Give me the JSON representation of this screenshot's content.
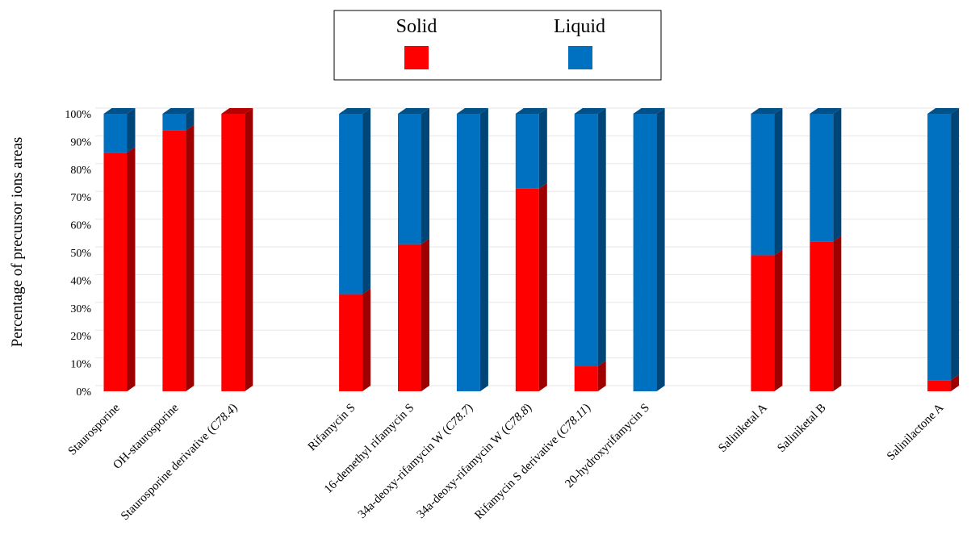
{
  "chart_data": {
    "type": "bar",
    "stacked": true,
    "three_d": true,
    "ylabel": "Percentage of precursor ions areas",
    "xlabel": "",
    "ylim": [
      0,
      100
    ],
    "y_ticks": [
      "0%",
      "10%",
      "20%",
      "30%",
      "40%",
      "50%",
      "60%",
      "70%",
      "80%",
      "90%",
      "100%"
    ],
    "grid": true,
    "legend": {
      "placement": "top-center",
      "entries": [
        {
          "name": "Solid",
          "color": "#ff0000"
        },
        {
          "name": "Liquid",
          "color": "#0070c0"
        }
      ]
    },
    "categories": [
      {
        "label": "Staurosporine",
        "italic": ""
      },
      {
        "label": "OH-staurosporine",
        "italic": ""
      },
      {
        "label": "Staurosporine derivative (",
        "italic": "C78.4",
        "suffix": ")"
      },
      {
        "label": "",
        "italic": ""
      },
      {
        "label": "Rifamycin S",
        "italic": ""
      },
      {
        "label": "16-demethyl rifamycin S",
        "italic": ""
      },
      {
        "label": "34a-deoxy-rifamycin W (",
        "italic": "C78.7",
        "suffix": ")"
      },
      {
        "label": "34a-deoxy-rifamycin W (",
        "italic": "C78.8",
        "suffix": ")"
      },
      {
        "label": "Rifamycin S derivative (",
        "italic": "C78.11",
        "suffix": ")"
      },
      {
        "label": "20-hydroxyrifamycin S",
        "italic": ""
      },
      {
        "label": "",
        "italic": ""
      },
      {
        "label": "Saliniketal A",
        "italic": ""
      },
      {
        "label": "Saliniketal B",
        "italic": ""
      },
      {
        "label": "",
        "italic": ""
      },
      {
        "label": "Salinilactone A",
        "italic": ""
      }
    ],
    "series": [
      {
        "name": "Solid",
        "color": "#ff0000",
        "values": [
          86,
          94,
          100,
          null,
          35,
          53,
          0,
          73,
          9,
          0,
          null,
          49,
          54,
          null,
          4
        ]
      },
      {
        "name": "Liquid",
        "color": "#0070c0",
        "values": [
          14,
          6,
          0,
          null,
          65,
          47,
          100,
          27,
          91,
          100,
          null,
          51,
          46,
          null,
          96
        ]
      }
    ]
  }
}
